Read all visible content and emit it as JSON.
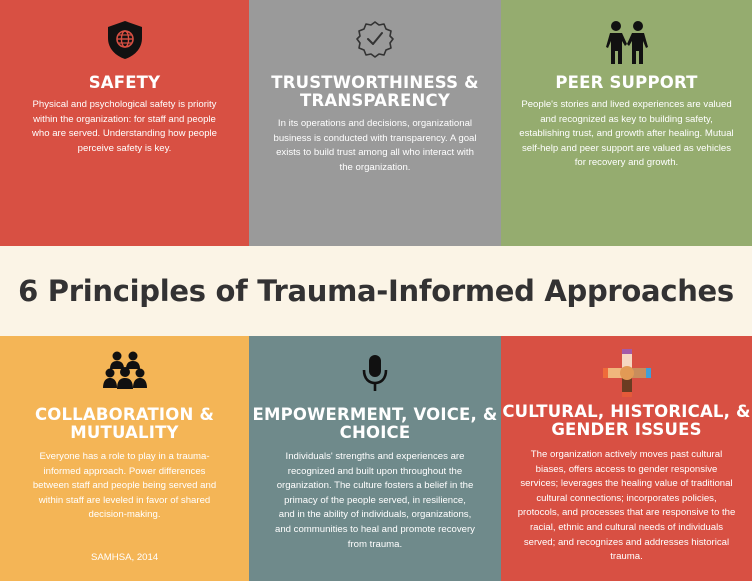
{
  "banner": {
    "title": "6 Principles of Trauma-Informed Approaches"
  },
  "principles": [
    {
      "title": "SAFETY",
      "icon": "shield-globe-icon",
      "color": "#d85043",
      "body": "Physical and psychological safety is priority within the organization: for staff and people who are served. Understanding how people perceive safety is key."
    },
    {
      "title": "TRUSTWORTHINESS & TRANSPARENCY",
      "icon": "check-badge-icon",
      "color": "#9a9a9a",
      "body": "In its operations and decisions, organizational business is conducted with transparency. A goal exists to build trust among all who interact with the organization."
    },
    {
      "title": "PEER SUPPORT",
      "icon": "two-people-icon",
      "color": "#95ac6f",
      "body": "People's stories and lived experiences are valued and recognized as key to building safety, establishing trust, and growth after healing. Mutual self-help and peer support are valued as vehicles for recovery and growth."
    },
    {
      "title": "COLLABORATION & MUTUALITY",
      "icon": "group-icon",
      "color": "#f4b556",
      "body": "Everyone has a role to play in a trauma-informed approach. Power differences between staff and people being served and within staff are leveled in favor of shared decision-making."
    },
    {
      "title": "EMPOWERMENT, VOICE, & CHOICE",
      "icon": "microphone-icon",
      "color": "#6f8a8b",
      "body": "Individuals' strengths and experiences are recognized and built upon throughout the organization. The culture fosters a belief in the primacy of the people served, in resilience, and in the ability of individuals, organizations, and communities to heal and promote recovery from trauma."
    },
    {
      "title": "CULTURAL, HISTORICAL, & GENDER ISSUES",
      "icon": "joined-hands-icon",
      "color": "#d85043",
      "body": "The organization actively moves past cultural biases, offers access to gender responsive services; leverages the healing value of traditional cultural connections; incorporates policies, protocols, and processes that are responsive to the racial, ethnic and cultural needs of individuals served; and recognizes and addresses historical trauma."
    }
  ],
  "source": "SAMHSA, 2014"
}
